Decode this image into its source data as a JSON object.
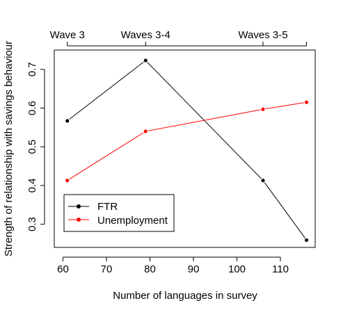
{
  "chart_data": {
    "type": "line",
    "xlabel": "Number of languages in survey",
    "ylabel": "Strength of relationship with savings behaviour",
    "xlim": [
      58,
      118
    ],
    "ylim": [
      0.24,
      0.75
    ],
    "x_ticks": [
      60,
      70,
      80,
      90,
      100,
      110
    ],
    "y_ticks": [
      0.3,
      0.4,
      0.5,
      0.6,
      0.7
    ],
    "top_axis": {
      "ticks": [
        {
          "x": 61,
          "label": "Wave 3"
        },
        {
          "x": 79,
          "label": "Waves 3-4"
        },
        {
          "x": 106,
          "label": "Waves 3-5"
        },
        {
          "x": 116,
          "label": ""
        }
      ]
    },
    "series": [
      {
        "name": "FTR",
        "color": "#000000",
        "x": [
          61,
          79,
          106,
          116
        ],
        "y": [
          0.567,
          0.723,
          0.413,
          0.259
        ]
      },
      {
        "name": "Unemployment",
        "color": "#ff0000",
        "x": [
          61,
          79,
          106,
          116
        ],
        "y": [
          0.413,
          0.54,
          0.597,
          0.615
        ]
      }
    ],
    "legend_position": "bottom-left",
    "grid": false
  }
}
